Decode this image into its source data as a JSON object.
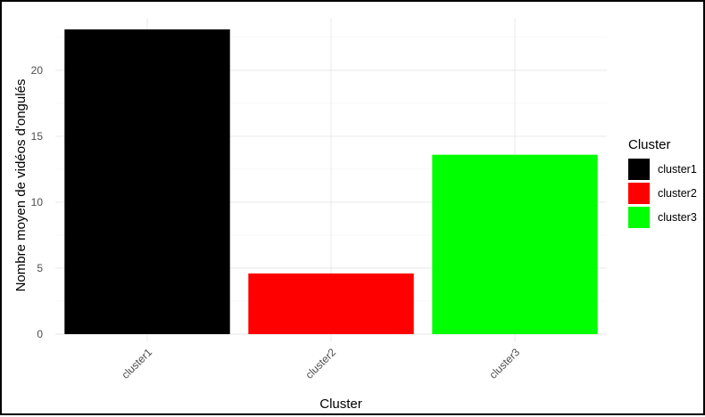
{
  "chart_data": {
    "type": "bar",
    "title": "",
    "xlabel": "Cluster",
    "ylabel": "Nombre moyen de vidéos d'ongulés",
    "categories": [
      "cluster1",
      "cluster2",
      "cluster3"
    ],
    "values": [
      23.1,
      4.6,
      13.6
    ],
    "colors": [
      "#000000",
      "#ff0000",
      "#00ff00"
    ],
    "ylim": [
      0,
      23.1
    ],
    "yticks": [
      0,
      5,
      10,
      15,
      20
    ],
    "grid": true,
    "legend": {
      "title": "Cluster",
      "placement": "right",
      "entries": [
        "cluster1",
        "cluster2",
        "cluster3"
      ]
    }
  }
}
